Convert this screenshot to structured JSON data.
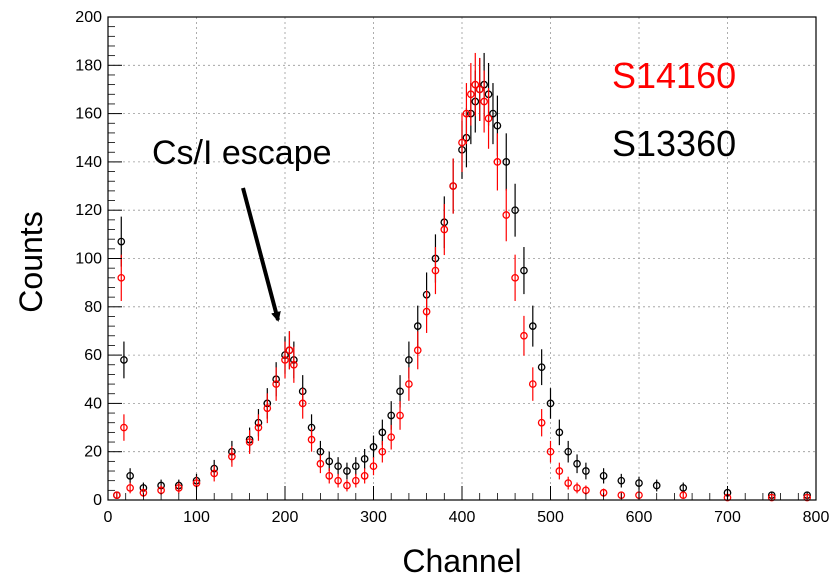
{
  "chart_data": {
    "type": "scatter",
    "xlabel": "Channel",
    "ylabel": "Counts",
    "xlim": [
      0,
      800
    ],
    "ylim": [
      0,
      200
    ],
    "x_ticks": [
      "0",
      "100",
      "200",
      "300",
      "400",
      "500",
      "600",
      "700",
      "800"
    ],
    "y_ticks": [
      "0",
      "20",
      "40",
      "60",
      "80",
      "100",
      "120",
      "140",
      "160",
      "180",
      "200"
    ],
    "grid": true,
    "legend_placement": "top-right",
    "annotation": {
      "text": "Cs/I escape",
      "points_to": [
        190,
        72
      ]
    },
    "series": [
      {
        "name": "S13360",
        "color": "#000000",
        "x": [
          10,
          15,
          18,
          25,
          40,
          60,
          80,
          100,
          120,
          140,
          160,
          170,
          180,
          190,
          200,
          205,
          210,
          220,
          230,
          240,
          250,
          260,
          270,
          280,
          290,
          300,
          310,
          320,
          330,
          340,
          350,
          360,
          370,
          380,
          390,
          400,
          405,
          410,
          415,
          420,
          425,
          430,
          435,
          440,
          450,
          460,
          470,
          480,
          490,
          500,
          510,
          520,
          530,
          540,
          560,
          580,
          600,
          620,
          650,
          700,
          750,
          790
        ],
        "values": [
          2,
          107,
          58,
          10,
          5,
          6,
          6,
          8,
          13,
          20,
          25,
          32,
          40,
          50,
          60,
          62,
          58,
          45,
          30,
          20,
          16,
          14,
          12,
          14,
          17,
          22,
          28,
          35,
          45,
          58,
          72,
          85,
          100,
          115,
          130,
          145,
          150,
          160,
          165,
          170,
          172,
          168,
          160,
          155,
          140,
          120,
          95,
          72,
          55,
          40,
          28,
          20,
          15,
          12,
          10,
          8,
          7,
          6,
          5,
          3,
          2,
          2
        ]
      },
      {
        "name": "S14160",
        "color": "#ff0000",
        "x": [
          10,
          15,
          18,
          25,
          40,
          60,
          80,
          100,
          120,
          140,
          160,
          170,
          180,
          190,
          200,
          205,
          210,
          220,
          230,
          240,
          250,
          260,
          270,
          280,
          290,
          300,
          310,
          320,
          330,
          340,
          350,
          360,
          370,
          380,
          390,
          400,
          405,
          410,
          415,
          420,
          425,
          430,
          440,
          450,
          460,
          470,
          480,
          490,
          500,
          510,
          520,
          530,
          540,
          560,
          580,
          600,
          650,
          700,
          750,
          790
        ],
        "values": [
          2,
          92,
          30,
          5,
          3,
          4,
          5,
          7,
          11,
          18,
          24,
          30,
          38,
          48,
          58,
          62,
          56,
          40,
          25,
          15,
          10,
          8,
          6,
          8,
          10,
          14,
          20,
          26,
          35,
          48,
          62,
          78,
          95,
          112,
          130,
          148,
          160,
          168,
          172,
          170,
          165,
          158,
          140,
          118,
          92,
          68,
          48,
          32,
          20,
          12,
          7,
          5,
          4,
          3,
          2,
          2,
          2,
          1,
          1,
          1
        ]
      }
    ]
  }
}
